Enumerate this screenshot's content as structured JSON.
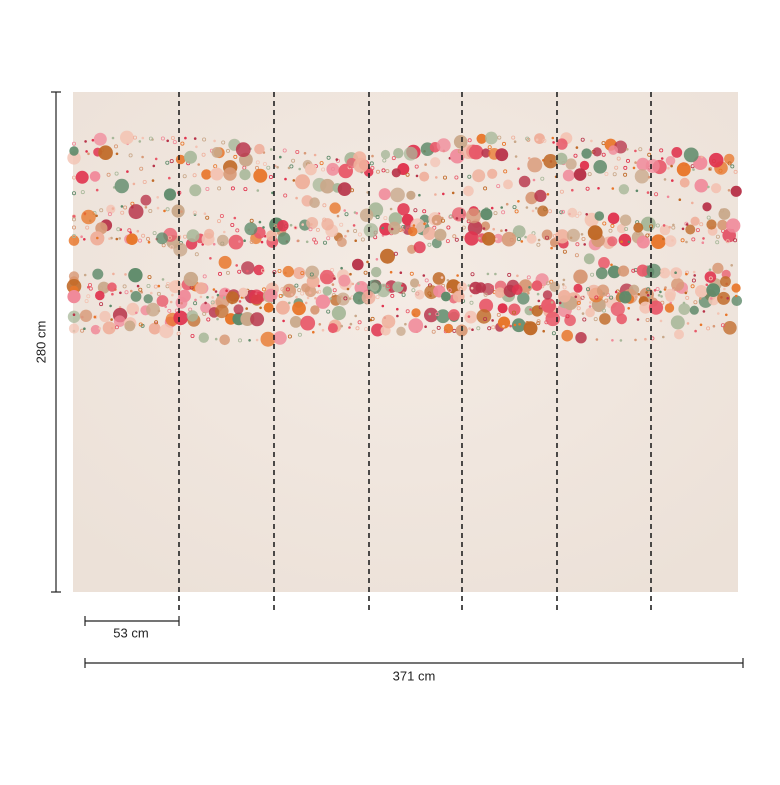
{
  "dimensions": {
    "height": "280 cm",
    "panel_width": "53 cm",
    "total_width": "371 cm"
  }
}
